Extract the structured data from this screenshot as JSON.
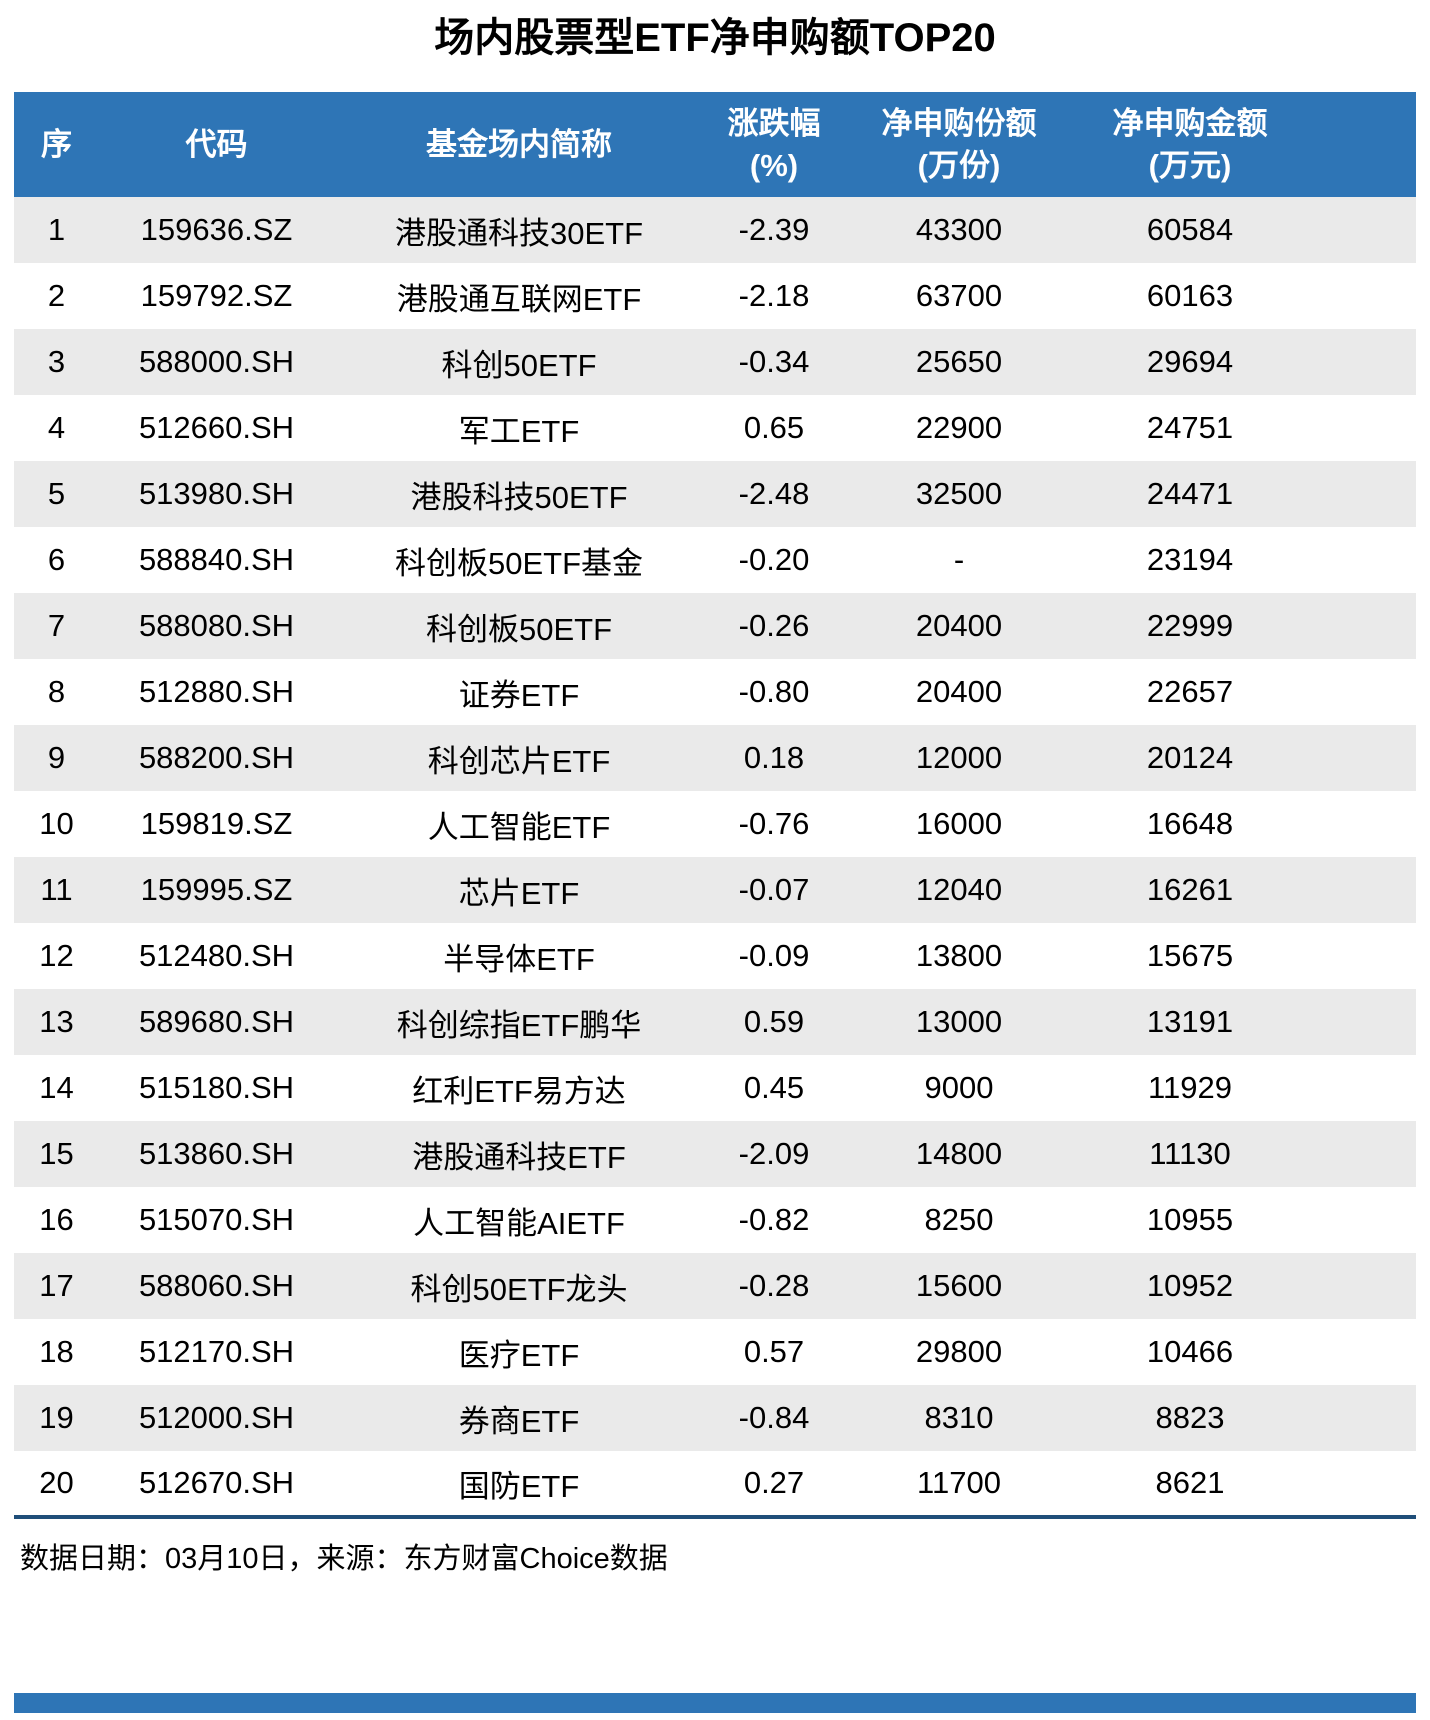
{
  "title": "场内股票型ETF净申购额TOP20",
  "footer": {
    "source_note": "数据日期：03月10日，来源：东方财富Choice数据"
  },
  "colors": {
    "header_bg": "#2E75B6",
    "header_text": "#FFFFFF",
    "row_alt_bg": "#EAEAEA",
    "table_bottom_border": "#1F4E79",
    "bottom_bar": "#2E75B6"
  },
  "chart_data": {
    "type": "table",
    "title": "场内股票型ETF净申购额TOP20",
    "columns": [
      "序",
      "代码",
      "基金场内简称",
      "涨跌幅(%)",
      "净申购份额(万份)",
      "净申购金额(万元)"
    ],
    "header_lines": [
      [
        "序",
        ""
      ],
      [
        "代码",
        ""
      ],
      [
        "基金场内简称",
        ""
      ],
      [
        "涨跌幅",
        "(%)"
      ],
      [
        "净申购份额",
        "(万份)"
      ],
      [
        "净申购金额",
        "(万元)"
      ]
    ],
    "rows": [
      [
        "1",
        "159636.SZ",
        "港股通科技30ETF",
        "-2.39",
        "43300",
        "60584"
      ],
      [
        "2",
        "159792.SZ",
        "港股通互联网ETF",
        "-2.18",
        "63700",
        "60163"
      ],
      [
        "3",
        "588000.SH",
        "科创50ETF",
        "-0.34",
        "25650",
        "29694"
      ],
      [
        "4",
        "512660.SH",
        "军工ETF",
        "0.65",
        "22900",
        "24751"
      ],
      [
        "5",
        "513980.SH",
        "港股科技50ETF",
        "-2.48",
        "32500",
        "24471"
      ],
      [
        "6",
        "588840.SH",
        "科创板50ETF基金",
        "-0.20",
        "-",
        "23194"
      ],
      [
        "7",
        "588080.SH",
        "科创板50ETF",
        "-0.26",
        "20400",
        "22999"
      ],
      [
        "8",
        "512880.SH",
        "证券ETF",
        "-0.80",
        "20400",
        "22657"
      ],
      [
        "9",
        "588200.SH",
        "科创芯片ETF",
        "0.18",
        "12000",
        "20124"
      ],
      [
        "10",
        "159819.SZ",
        "人工智能ETF",
        "-0.76",
        "16000",
        "16648"
      ],
      [
        "11",
        "159995.SZ",
        "芯片ETF",
        "-0.07",
        "12040",
        "16261"
      ],
      [
        "12",
        "512480.SH",
        "半导体ETF",
        "-0.09",
        "13800",
        "15675"
      ],
      [
        "13",
        "589680.SH",
        "科创综指ETF鹏华",
        "0.59",
        "13000",
        "13191"
      ],
      [
        "14",
        "515180.SH",
        "红利ETF易方达",
        "0.45",
        "9000",
        "11929"
      ],
      [
        "15",
        "513860.SH",
        "港股通科技ETF",
        "-2.09",
        "14800",
        "11130"
      ],
      [
        "16",
        "515070.SH",
        "人工智能AIETF",
        "-0.82",
        "8250",
        "10955"
      ],
      [
        "17",
        "588060.SH",
        "科创50ETF龙头",
        "-0.28",
        "15600",
        "10952"
      ],
      [
        "18",
        "512170.SH",
        "医疗ETF",
        "0.57",
        "29800",
        "10466"
      ],
      [
        "19",
        "512000.SH",
        "券商ETF",
        "-0.84",
        "8310",
        "8823"
      ],
      [
        "20",
        "512670.SH",
        "国防ETF",
        "0.27",
        "11700",
        "8621"
      ]
    ],
    "source": "数据日期：03月10日，来源：东方财富Choice数据"
  }
}
